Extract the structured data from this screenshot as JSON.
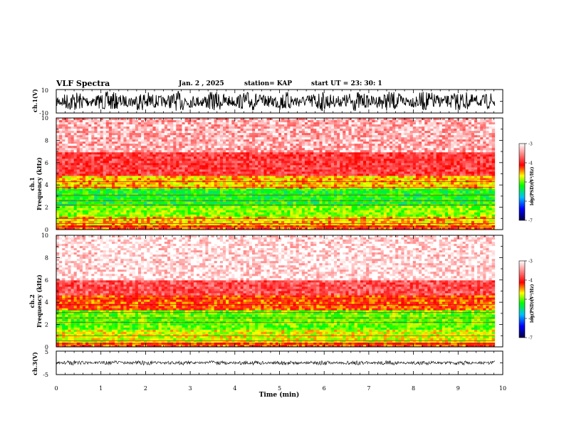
{
  "header": {
    "title": "VLF Spectra",
    "date": "Jan. 2 , 2025",
    "station": "station= KAP",
    "start_ut": "start UT = 23: 30: 1"
  },
  "chart_data": [
    {
      "type": "line",
      "name": "ch1-waveform",
      "ylabel": "ch.1(V)",
      "ylim": [
        -10,
        10
      ],
      "yticks": [
        "10",
        "-10"
      ],
      "xlim": [
        0,
        10
      ]
    },
    {
      "type": "heatmap",
      "name": "ch1-spectrogram",
      "ylabel": "ch.1\nFrequency (kHz)",
      "ylim": [
        0,
        10
      ],
      "yticks": [
        "0",
        "2",
        "4",
        "6",
        "8",
        "10"
      ],
      "xlim": [
        0,
        10
      ],
      "bands": [
        {
          "from": 0,
          "to": 0.4,
          "level": -4.2
        },
        {
          "from": 0.4,
          "to": 1.2,
          "level": -4.5
        },
        {
          "from": 1.2,
          "to": 2.2,
          "level": -4.9
        },
        {
          "from": 2.2,
          "to": 3.6,
          "level": -5.2
        },
        {
          "from": 3.6,
          "to": 4.8,
          "level": -4.5
        },
        {
          "from": 4.8,
          "to": 7.0,
          "level": -3.8
        },
        {
          "from": 7.0,
          "to": 10,
          "level": -3.3
        }
      ],
      "colorbar": {
        "label": "log(PSD)(V²/Hz)",
        "ticks": [
          "-3",
          "-4",
          "-5",
          "-6",
          "-7"
        ],
        "range": [
          -7,
          -3
        ]
      }
    },
    {
      "type": "heatmap",
      "name": "ch2-spectrogram",
      "ylabel": "ch.2\nFrequency (kHz)",
      "ylim": [
        0,
        10
      ],
      "yticks": [
        "0",
        "2",
        "4",
        "6",
        "8",
        "10"
      ],
      "xlim": [
        0,
        10
      ],
      "bands": [
        {
          "from": 0,
          "to": 0.4,
          "level": -4.2
        },
        {
          "from": 0.4,
          "to": 1.5,
          "level": -4.7
        },
        {
          "from": 1.5,
          "to": 3.2,
          "level": -5.0
        },
        {
          "from": 3.2,
          "to": 4.6,
          "level": -4.2
        },
        {
          "from": 4.6,
          "to": 6.0,
          "level": -3.7
        },
        {
          "from": 6.0,
          "to": 10,
          "level": -3.1
        }
      ],
      "colorbar": {
        "label": "log(PSD)(V²/Hz)",
        "ticks": [
          "-3",
          "-4",
          "-5",
          "-6",
          "-7"
        ],
        "range": [
          -7,
          -3
        ]
      }
    },
    {
      "type": "line",
      "name": "ch3-waveform",
      "ylabel": "ch.3(V)",
      "ylim": [
        -5,
        5
      ],
      "yticks": [
        "5",
        "-5"
      ],
      "xlim": [
        0,
        10
      ]
    }
  ],
  "x_axis": {
    "label": "Time (min)",
    "ticks": [
      "0",
      "1",
      "2",
      "3",
      "4",
      "5",
      "6",
      "7",
      "8",
      "9",
      "10"
    ],
    "range": [
      0,
      10
    ],
    "data_end": 9.82
  },
  "colors": {
    "red": "#ff0000",
    "yellow": "#ffff00",
    "green": "#00ff00",
    "blue": "#0000ff",
    "black": "#000000"
  }
}
